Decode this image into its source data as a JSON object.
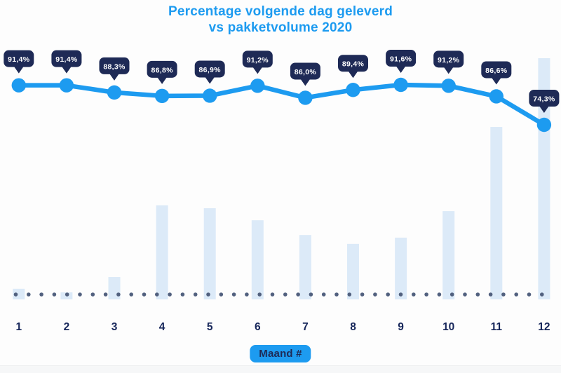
{
  "header": {
    "title_line1": "Percentage volgende dag geleverd",
    "title_line2": "vs pakketvolume 2020"
  },
  "x_axis": {
    "label_badge": "Maand #",
    "ticks": [
      "1",
      "2",
      "3",
      "4",
      "5",
      "6",
      "7",
      "8",
      "9",
      "10",
      "11",
      "12"
    ]
  },
  "chart_data": {
    "type": "combo",
    "title": "Percentage volgende dag geleverd vs pakketvolume 2020",
    "categories": [
      1,
      2,
      3,
      4,
      5,
      6,
      7,
      8,
      9,
      10,
      11,
      12
    ],
    "xlabel": "Maand #",
    "legend": {
      "visible": false
    },
    "grid": false,
    "series": [
      {
        "name": "Percentage volgende dag geleverd",
        "type": "line",
        "unit": "%",
        "values": [
          91.4,
          91.4,
          88.3,
          86.8,
          86.9,
          91.2,
          86.0,
          89.4,
          91.6,
          91.2,
          86.6,
          74.3
        ],
        "labels": [
          "91,4%",
          "91,4%",
          "88,3%",
          "86,8%",
          "86,9%",
          "91,2%",
          "86,0%",
          "89,4%",
          "91,6%",
          "91,2%",
          "86,6%",
          "74,3%"
        ]
      },
      {
        "name": "Pakketvolume",
        "type": "bar",
        "axis_labeled": false,
        "values_pct_of_max": [
          4.4,
          2.9,
          9.3,
          39.0,
          37.8,
          32.8,
          26.7,
          23.0,
          25.6,
          36.6,
          71.5,
          100.0
        ]
      }
    ]
  },
  "colors": {
    "accent_blue": "#1D9BF0",
    "badge_navy": "#1E2A56",
    "badge_text": "#FFFFFF",
    "bar_fill": "#DCEAF8",
    "baseline_dot": "#52617F",
    "tick_navy": "#16265A",
    "background": "#FDFDFD"
  }
}
